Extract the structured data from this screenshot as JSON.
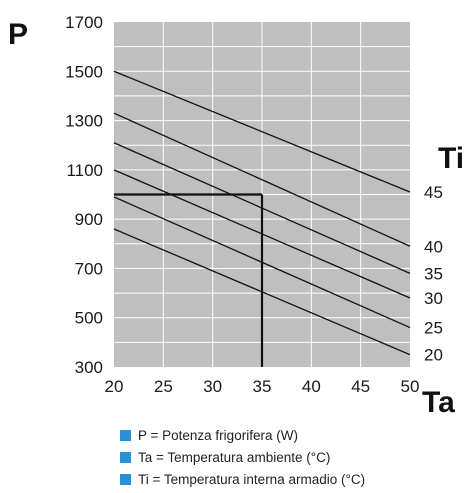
{
  "chart_data": {
    "type": "line",
    "xlabel": "Ta",
    "ylabel": "P",
    "series_label": "Ti",
    "xlim": [
      20,
      50
    ],
    "ylim": [
      300,
      1700
    ],
    "x_ticks": [
      20,
      25,
      30,
      35,
      40,
      45,
      50
    ],
    "y_ticks": [
      300,
      500,
      700,
      900,
      1100,
      1300,
      1500,
      1700
    ],
    "grid": true,
    "series": [
      {
        "name": "45",
        "x": [
          20,
          50
        ],
        "y": [
          1500,
          1010
        ]
      },
      {
        "name": "40",
        "x": [
          20,
          50
        ],
        "y": [
          1330,
          790
        ]
      },
      {
        "name": "35",
        "x": [
          20,
          50
        ],
        "y": [
          1210,
          680
        ]
      },
      {
        "name": "30",
        "x": [
          20,
          50
        ],
        "y": [
          1100,
          580
        ]
      },
      {
        "name": "25",
        "x": [
          20,
          50
        ],
        "y": [
          990,
          460
        ]
      },
      {
        "name": "20",
        "x": [
          20,
          50
        ],
        "y": [
          860,
          350
        ]
      }
    ],
    "reference": {
      "x": 35,
      "y": 1000
    },
    "colors": {
      "plot_bg": "#bfbfbf",
      "grid": "#ffffff",
      "line": "#111111",
      "legend_marker": "#2b8fd6"
    }
  },
  "legend": [
    "P = Potenza frigorifera (W)",
    "Ta = Temperatura ambiente (°C)",
    "Ti = Temperatura interna armadio (°C)"
  ]
}
